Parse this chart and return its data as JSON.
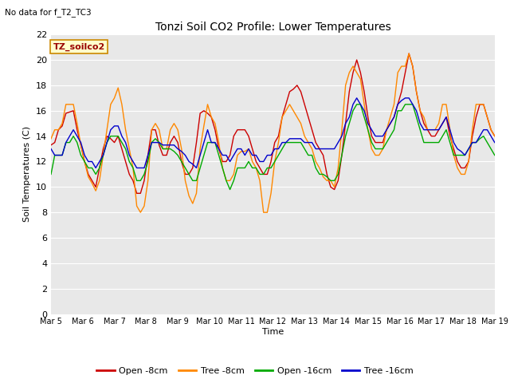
{
  "title": "Tonzi Soil CO2 Profile: Lower Temperatures",
  "subtitle": "No data for f_T2_TC3",
  "watermark": "TZ_soilco2",
  "ylabel": "Soil Temperatures (C)",
  "xlabel": "Time",
  "ylim": [
    0,
    22
  ],
  "yticks": [
    0,
    2,
    4,
    6,
    8,
    10,
    12,
    14,
    16,
    18,
    20,
    22
  ],
  "xtick_labels": [
    "Mar 5",
    "Mar 6",
    "Mar 7",
    "Mar 8",
    "Mar 9",
    "Mar 10",
    "Mar 11",
    "Mar 12",
    "Mar 13",
    "Mar 14",
    "Mar 15",
    "Mar 16",
    "Mar 17",
    "Mar 18",
    "Mar 19"
  ],
  "colors": {
    "open_8cm": "#cc0000",
    "tree_8cm": "#ff8800",
    "open_16cm": "#00aa00",
    "tree_16cm": "#0000cc"
  },
  "open_8cm": [
    13.3,
    13.5,
    14.5,
    14.8,
    15.8,
    15.9,
    16.0,
    14.5,
    13.3,
    12.0,
    11.0,
    10.5,
    10.0,
    11.5,
    13.0,
    14.0,
    13.8,
    13.5,
    14.0,
    13.0,
    12.0,
    11.0,
    10.5,
    9.5,
    9.5,
    10.5,
    12.5,
    14.5,
    14.5,
    13.3,
    12.5,
    12.5,
    13.5,
    14.0,
    13.5,
    12.0,
    11.0,
    11.0,
    11.5,
    13.5,
    15.8,
    16.0,
    15.8,
    15.5,
    14.5,
    13.0,
    12.0,
    12.0,
    12.5,
    14.0,
    14.5,
    14.5,
    14.5,
    14.0,
    13.0,
    12.0,
    11.5,
    11.0,
    11.0,
    12.0,
    13.5,
    14.0,
    15.5,
    16.5,
    17.5,
    17.7,
    18.0,
    17.5,
    16.5,
    15.5,
    14.5,
    13.5,
    13.0,
    12.5,
    11.0,
    10.0,
    9.8,
    10.5,
    12.5,
    15.0,
    17.5,
    19.0,
    20.0,
    19.0,
    17.5,
    15.5,
    14.0,
    13.5,
    13.5,
    13.5,
    14.5,
    15.0,
    15.5,
    16.5,
    17.5,
    19.0,
    20.5,
    19.5,
    17.5,
    16.0,
    15.0,
    14.5,
    14.0,
    14.0,
    14.5,
    15.0,
    15.5,
    14.0,
    13.0,
    12.0,
    11.5,
    11.5,
    12.0,
    14.0,
    15.5,
    16.5,
    16.5,
    15.5,
    14.5,
    14.0
  ],
  "tree_8cm": [
    13.8,
    14.5,
    14.5,
    15.0,
    16.5,
    16.5,
    16.5,
    15.0,
    13.3,
    12.0,
    10.8,
    10.3,
    9.7,
    10.5,
    12.5,
    14.5,
    16.5,
    17.0,
    17.8,
    16.5,
    14.5,
    13.0,
    11.5,
    8.5,
    8.0,
    8.5,
    10.5,
    14.5,
    15.0,
    14.5,
    13.0,
    13.0,
    14.5,
    15.0,
    14.5,
    13.0,
    10.5,
    9.3,
    8.7,
    9.5,
    13.0,
    14.8,
    16.5,
    15.5,
    15.0,
    13.5,
    11.5,
    10.5,
    10.5,
    11.0,
    12.5,
    12.8,
    12.8,
    13.0,
    12.0,
    11.5,
    10.5,
    8.0,
    8.0,
    9.5,
    12.0,
    13.5,
    15.5,
    16.0,
    16.5,
    16.0,
    15.5,
    15.0,
    14.0,
    13.5,
    13.0,
    12.0,
    11.5,
    10.8,
    10.5,
    10.5,
    10.0,
    11.5,
    14.5,
    18.0,
    19.0,
    19.5,
    19.0,
    18.5,
    16.5,
    14.5,
    13.0,
    12.5,
    12.5,
    13.0,
    14.5,
    15.5,
    16.5,
    19.0,
    19.5,
    19.5,
    20.5,
    19.5,
    17.5,
    16.0,
    15.5,
    14.5,
    14.5,
    14.5,
    15.0,
    16.5,
    16.5,
    14.5,
    12.5,
    11.5,
    11.0,
    11.0,
    12.0,
    14.5,
    16.5,
    16.5,
    16.5,
    15.5,
    14.5,
    14.0
  ],
  "open_16cm": [
    11.0,
    12.5,
    12.5,
    12.5,
    13.5,
    13.5,
    14.0,
    13.5,
    12.5,
    12.0,
    11.5,
    11.5,
    11.0,
    11.5,
    12.5,
    13.5,
    14.0,
    14.0,
    14.0,
    13.5,
    13.0,
    12.0,
    11.5,
    10.5,
    10.5,
    11.0,
    12.0,
    13.5,
    13.8,
    13.5,
    13.0,
    13.0,
    13.0,
    12.8,
    12.5,
    12.0,
    11.5,
    11.0,
    10.5,
    10.5,
    11.5,
    12.5,
    13.5,
    13.5,
    13.5,
    12.5,
    11.5,
    10.5,
    9.8,
    10.5,
    11.5,
    11.5,
    11.5,
    12.0,
    11.5,
    11.5,
    11.0,
    11.0,
    11.5,
    11.5,
    12.0,
    12.5,
    13.0,
    13.5,
    13.5,
    13.5,
    13.5,
    13.5,
    13.0,
    12.5,
    12.5,
    11.5,
    11.0,
    11.0,
    10.8,
    10.5,
    10.5,
    11.0,
    12.5,
    14.0,
    15.0,
    16.0,
    16.5,
    16.5,
    15.5,
    14.5,
    13.5,
    13.0,
    13.0,
    13.0,
    13.5,
    14.0,
    14.5,
    16.0,
    16.0,
    16.5,
    16.5,
    16.5,
    15.5,
    14.5,
    13.5,
    13.5,
    13.5,
    13.5,
    13.5,
    14.0,
    14.5,
    13.5,
    12.5,
    12.5,
    12.5,
    12.5,
    13.0,
    13.5,
    13.5,
    13.8,
    14.0,
    13.5,
    13.0,
    12.5
  ],
  "tree_16cm": [
    13.0,
    12.5,
    12.5,
    12.5,
    13.5,
    14.0,
    14.5,
    14.0,
    13.5,
    12.5,
    12.0,
    12.0,
    11.5,
    12.0,
    12.5,
    13.5,
    14.5,
    14.8,
    14.8,
    14.0,
    13.5,
    12.5,
    12.0,
    11.5,
    11.5,
    11.5,
    12.5,
    13.5,
    13.5,
    13.5,
    13.3,
    13.3,
    13.3,
    13.3,
    13.0,
    12.8,
    12.5,
    12.0,
    11.8,
    11.5,
    12.5,
    13.5,
    14.5,
    13.5,
    13.5,
    13.0,
    12.5,
    12.5,
    12.0,
    12.5,
    13.0,
    13.0,
    12.5,
    13.0,
    12.5,
    12.5,
    12.0,
    12.0,
    12.5,
    12.5,
    13.0,
    13.0,
    13.5,
    13.5,
    13.8,
    13.8,
    13.8,
    13.8,
    13.5,
    13.5,
    13.5,
    13.0,
    13.0,
    13.0,
    13.0,
    13.0,
    13.0,
    13.5,
    14.0,
    15.0,
    15.5,
    16.5,
    17.0,
    16.5,
    16.0,
    15.0,
    14.5,
    14.0,
    14.0,
    14.0,
    14.5,
    15.0,
    15.5,
    16.5,
    16.8,
    17.0,
    17.0,
    16.5,
    16.0,
    15.0,
    14.5,
    14.5,
    14.5,
    14.5,
    14.5,
    15.0,
    15.5,
    14.5,
    13.5,
    13.0,
    12.8,
    12.5,
    13.0,
    13.5,
    13.5,
    14.0,
    14.5,
    14.5,
    14.0,
    13.5
  ]
}
